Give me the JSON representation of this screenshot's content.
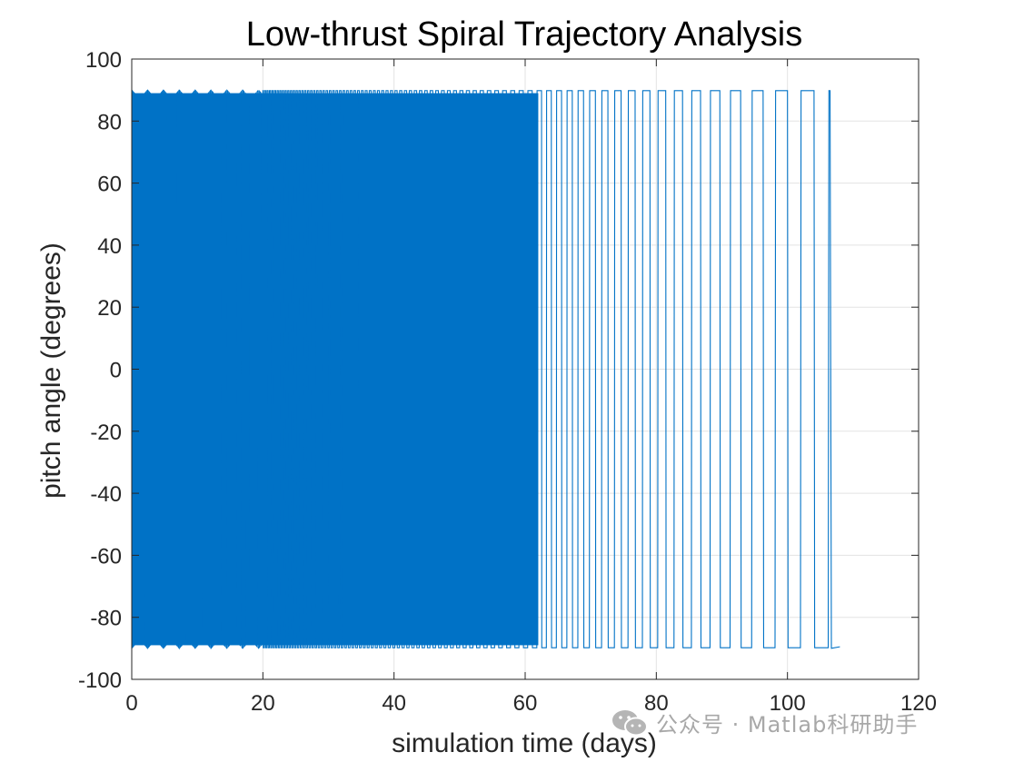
{
  "chart_data": {
    "type": "line",
    "title": "Low-thrust Spiral Trajectory Analysis",
    "xlabel": "simulation time (days)",
    "ylabel": "pitch angle (degrees)",
    "xlim": [
      0,
      120
    ],
    "ylim": [
      -100,
      100
    ],
    "xticks": [
      0,
      20,
      40,
      60,
      80,
      100,
      120
    ],
    "yticks": [
      -100,
      -80,
      -60,
      -40,
      -20,
      0,
      20,
      40,
      60,
      80,
      100
    ],
    "xtick_labels": [
      "0",
      "20",
      "40",
      "60",
      "80",
      "100",
      "120"
    ],
    "ytick_labels": [
      "-100",
      "-80",
      "-60",
      "-40",
      "-20",
      "0",
      "20",
      "40",
      "60",
      "80",
      "100"
    ],
    "grid": true,
    "series": [
      {
        "color": "#0072C6",
        "description_values": {
          "t_start": 0,
          "t_end": 108,
          "amplitude": 90,
          "dense_fill_until": 62,
          "final_period_days": 4.6,
          "early_period_days": 0.3
        },
        "x": [
          0,
          10,
          20,
          30,
          40,
          50,
          60,
          62,
          65,
          70,
          75,
          80,
          85,
          90,
          95,
          100,
          105,
          108
        ],
        "y_upper": [
          88,
          88,
          89,
          89.5,
          89.5,
          89.8,
          90,
          90,
          90,
          90,
          90,
          90,
          90,
          90,
          90,
          90,
          90,
          90
        ],
        "y_lower": [
          -88,
          -89,
          -89,
          -89.5,
          -89.5,
          -89.8,
          -90,
          -90,
          -90,
          -90,
          -90,
          -90,
          -90,
          -90,
          -90,
          -90,
          -90,
          -90
        ]
      }
    ]
  },
  "watermark": {
    "text": "公众号 · Matlab科研助手"
  }
}
